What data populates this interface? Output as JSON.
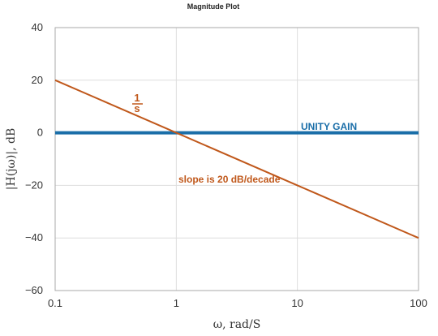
{
  "chart_data": {
    "type": "line",
    "title": "Magnitude Plot",
    "xlabel": "ω, rad/S",
    "ylabel": "|H(jω)|, dB",
    "x_scale": "log",
    "xlim": [
      0.1,
      100
    ],
    "ylim": [
      -60,
      40
    ],
    "x_ticks": [
      0.1,
      1,
      10,
      100
    ],
    "x_tick_labels": [
      "0.1",
      "1",
      "10",
      "100"
    ],
    "y_ticks": [
      40,
      20,
      0,
      -20,
      -40,
      -60
    ],
    "y_tick_labels": [
      "40",
      "20",
      "0",
      "−20",
      "−40",
      "−60"
    ],
    "grid": true,
    "series": [
      {
        "name": "UNITY GAIN",
        "color": "#1a6ea8",
        "x": [
          0.1,
          100
        ],
        "y": [
          0,
          0
        ]
      },
      {
        "name": "1/s",
        "color": "#c0581b",
        "x": [
          0.1,
          1,
          10,
          100
        ],
        "y": [
          20,
          0,
          -20,
          -40
        ]
      }
    ],
    "annotations": {
      "fraction_numerator": "1",
      "fraction_denominator": "s",
      "unity_gain": "UNITY GAIN",
      "slope": "slope is 20 dB/decade"
    }
  }
}
